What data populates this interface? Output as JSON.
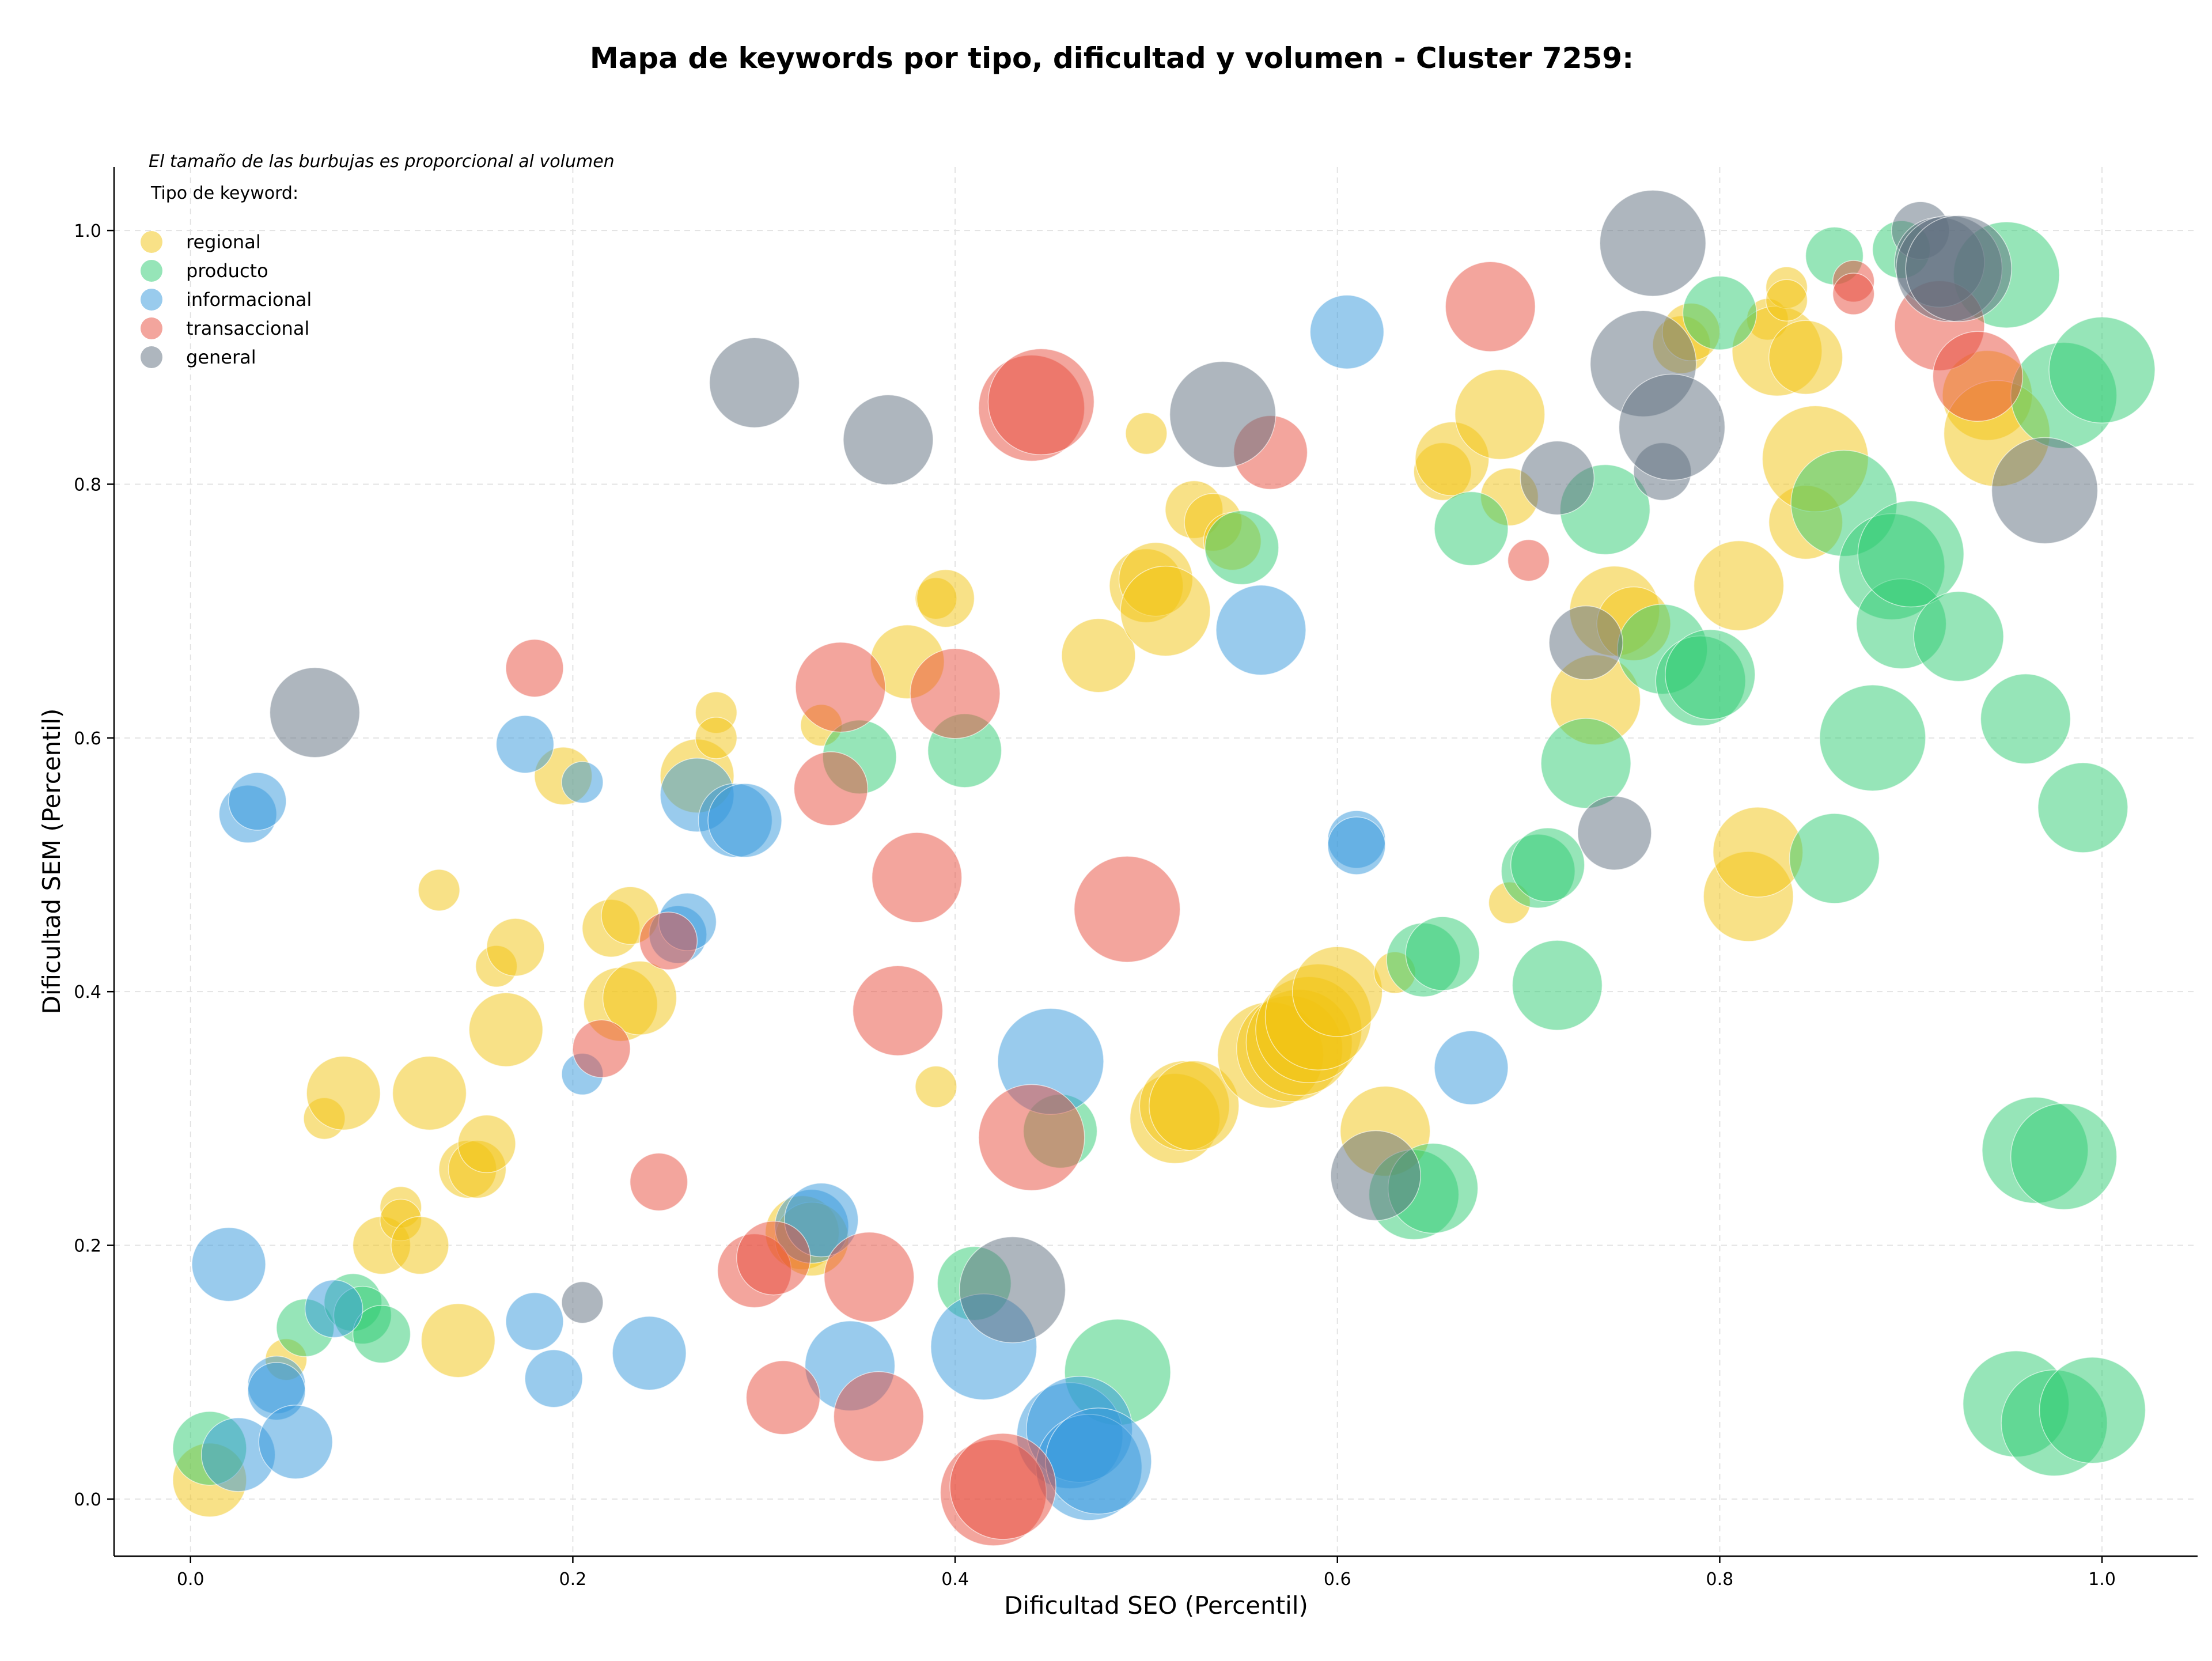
{
  "chart_data": {
    "type": "scatter",
    "title": "Mapa de keywords por tipo, dificultad y volumen - Cluster 7259:",
    "xlabel": "Dificultad SEO (Percentil)",
    "ylabel": "Dificultad SEM (Percentil)",
    "xlim": [
      -0.04,
      1.05
    ],
    "ylim": [
      -0.045,
      1.05
    ],
    "xticks": [
      0.0,
      0.2,
      0.4,
      0.6,
      0.8,
      1.0
    ],
    "yticks": [
      0.0,
      0.2,
      0.4,
      0.6,
      0.8,
      1.0
    ],
    "xtick_labels": [
      "0.0",
      "0.2",
      "0.4",
      "0.6",
      "0.8",
      "1.0"
    ],
    "ytick_labels": [
      "0.0",
      "0.2",
      "0.4",
      "0.6",
      "0.8",
      "1.0"
    ],
    "grid": true,
    "legend_position": "top-left",
    "legend_note": "El tamaño de las burbujas es proporcional al volumen",
    "legend_title": "Tipo de keyword:",
    "series": [
      {
        "name": "regional",
        "color": "#f1c40f",
        "points": [
          [
            0.01,
            0.015,
            3
          ],
          [
            0.05,
            0.11,
            1
          ],
          [
            0.07,
            0.3,
            1
          ],
          [
            0.08,
            0.32,
            3
          ],
          [
            0.1,
            0.2,
            2
          ],
          [
            0.11,
            0.23,
            1
          ],
          [
            0.11,
            0.22,
            1
          ],
          [
            0.12,
            0.2,
            2
          ],
          [
            0.125,
            0.32,
            3
          ],
          [
            0.13,
            0.48,
            1
          ],
          [
            0.14,
            0.125,
            3
          ],
          [
            0.145,
            0.26,
            2
          ],
          [
            0.15,
            0.26,
            2
          ],
          [
            0.155,
            0.28,
            2
          ],
          [
            0.16,
            0.42,
            1
          ],
          [
            0.165,
            0.37,
            3
          ],
          [
            0.17,
            0.435,
            2
          ],
          [
            0.195,
            0.57,
            2
          ],
          [
            0.22,
            0.45,
            2
          ],
          [
            0.225,
            0.39,
            3
          ],
          [
            0.23,
            0.46,
            2
          ],
          [
            0.235,
            0.395,
            3
          ],
          [
            0.265,
            0.57,
            3
          ],
          [
            0.275,
            0.62,
            1
          ],
          [
            0.275,
            0.6,
            1
          ],
          [
            0.33,
            0.61,
            1
          ],
          [
            0.32,
            0.21,
            3
          ],
          [
            0.325,
            0.205,
            3
          ],
          [
            0.375,
            0.66,
            3
          ],
          [
            0.39,
            0.71,
            1
          ],
          [
            0.39,
            0.325,
            1
          ],
          [
            0.395,
            0.71,
            2
          ],
          [
            0.475,
            0.665,
            3
          ],
          [
            0.5,
            0.84,
            1
          ],
          [
            0.5,
            0.72,
            3
          ],
          [
            0.505,
            0.725,
            3
          ],
          [
            0.51,
            0.7,
            4
          ],
          [
            0.515,
            0.3,
            4
          ],
          [
            0.52,
            0.31,
            4
          ],
          [
            0.525,
            0.31,
            4
          ],
          [
            0.525,
            0.78,
            2
          ],
          [
            0.535,
            0.77,
            2
          ],
          [
            0.545,
            0.755,
            2
          ],
          [
            0.565,
            0.35,
            5
          ],
          [
            0.575,
            0.355,
            5
          ],
          [
            0.58,
            0.36,
            5
          ],
          [
            0.585,
            0.37,
            5
          ],
          [
            0.59,
            0.38,
            5
          ],
          [
            0.6,
            0.4,
            4
          ],
          [
            0.625,
            0.29,
            4
          ],
          [
            0.63,
            0.415,
            1
          ],
          [
            0.655,
            0.81,
            2
          ],
          [
            0.66,
            0.82,
            3
          ],
          [
            0.685,
            0.855,
            4
          ],
          [
            0.69,
            0.79,
            2
          ],
          [
            0.69,
            0.47,
            1
          ],
          [
            0.735,
            0.63,
            4
          ],
          [
            0.745,
            0.7,
            4
          ],
          [
            0.755,
            0.69,
            3
          ],
          [
            0.78,
            0.91,
            2
          ],
          [
            0.785,
            0.92,
            2
          ],
          [
            0.81,
            0.72,
            4
          ],
          [
            0.815,
            0.475,
            4
          ],
          [
            0.82,
            0.51,
            4
          ],
          [
            0.825,
            0.93,
            1
          ],
          [
            0.83,
            0.905,
            4
          ],
          [
            0.835,
            0.955,
            1
          ],
          [
            0.835,
            0.945,
            1
          ],
          [
            0.845,
            0.9,
            3
          ],
          [
            0.845,
            0.77,
            3
          ],
          [
            0.85,
            0.82,
            5
          ],
          [
            0.94,
            0.87,
            4
          ],
          [
            0.945,
            0.84,
            5
          ]
        ]
      },
      {
        "name": "producto",
        "color": "#2ecc71",
        "points": [
          [
            0.01,
            0.04,
            3
          ],
          [
            0.06,
            0.135,
            2
          ],
          [
            0.085,
            0.155,
            2
          ],
          [
            0.09,
            0.145,
            2
          ],
          [
            0.1,
            0.13,
            2
          ],
          [
            0.35,
            0.585,
            3
          ],
          [
            0.405,
            0.59,
            3
          ],
          [
            0.41,
            0.17,
            3
          ],
          [
            0.455,
            0.29,
            3
          ],
          [
            0.485,
            0.1,
            5
          ],
          [
            0.55,
            0.75,
            3
          ],
          [
            0.64,
            0.24,
            4
          ],
          [
            0.645,
            0.425,
            3
          ],
          [
            0.65,
            0.245,
            4
          ],
          [
            0.655,
            0.43,
            3
          ],
          [
            0.67,
            0.765,
            3
          ],
          [
            0.705,
            0.495,
            3
          ],
          [
            0.71,
            0.5,
            3
          ],
          [
            0.715,
            0.405,
            4
          ],
          [
            0.73,
            0.58,
            4
          ],
          [
            0.74,
            0.78,
            4
          ],
          [
            0.77,
            0.67,
            4
          ],
          [
            0.79,
            0.645,
            4
          ],
          [
            0.795,
            0.65,
            4
          ],
          [
            0.8,
            0.935,
            3
          ],
          [
            0.86,
            0.98,
            2
          ],
          [
            0.86,
            0.505,
            4
          ],
          [
            0.865,
            0.785,
            5
          ],
          [
            0.88,
            0.6,
            5
          ],
          [
            0.89,
            0.735,
            5
          ],
          [
            0.895,
            0.69,
            4
          ],
          [
            0.895,
            0.985,
            2
          ],
          [
            0.9,
            0.745,
            5
          ],
          [
            0.925,
            0.68,
            4
          ],
          [
            0.95,
            0.965,
            5
          ],
          [
            0.955,
            0.075,
            5
          ],
          [
            0.96,
            0.615,
            4
          ],
          [
            0.965,
            0.275,
            5
          ],
          [
            0.975,
            0.06,
            5
          ],
          [
            0.98,
            0.87,
            5
          ],
          [
            0.98,
            0.27,
            5
          ],
          [
            0.99,
            0.545,
            4
          ],
          [
            0.995,
            0.07,
            5
          ],
          [
            1.0,
            0.89,
            5
          ]
        ]
      },
      {
        "name": "informacional",
        "color": "#3498db",
        "points": [
          [
            0.02,
            0.185,
            3
          ],
          [
            0.025,
            0.035,
            3
          ],
          [
            0.03,
            0.54,
            2
          ],
          [
            0.035,
            0.55,
            2
          ],
          [
            0.045,
            0.09,
            2
          ],
          [
            0.045,
            0.085,
            2
          ],
          [
            0.055,
            0.045,
            3
          ],
          [
            0.075,
            0.15,
            2
          ],
          [
            0.175,
            0.595,
            2
          ],
          [
            0.18,
            0.14,
            2
          ],
          [
            0.19,
            0.095,
            2
          ],
          [
            0.205,
            0.565,
            1
          ],
          [
            0.205,
            0.335,
            1
          ],
          [
            0.24,
            0.115,
            3
          ],
          [
            0.255,
            0.445,
            2
          ],
          [
            0.26,
            0.455,
            2
          ],
          [
            0.265,
            0.555,
            3
          ],
          [
            0.285,
            0.535,
            3
          ],
          [
            0.29,
            0.535,
            3
          ],
          [
            0.325,
            0.215,
            3
          ],
          [
            0.33,
            0.22,
            3
          ],
          [
            0.345,
            0.105,
            4
          ],
          [
            0.415,
            0.12,
            5
          ],
          [
            0.45,
            0.345,
            5
          ],
          [
            0.46,
            0.05,
            5
          ],
          [
            0.465,
            0.055,
            5
          ],
          [
            0.47,
            0.025,
            5
          ],
          [
            0.475,
            0.03,
            5
          ],
          [
            0.56,
            0.685,
            4
          ],
          [
            0.605,
            0.92,
            3
          ],
          [
            0.61,
            0.52,
            2
          ],
          [
            0.61,
            0.515,
            2
          ],
          [
            0.67,
            0.34,
            3
          ]
        ]
      },
      {
        "name": "transaccional",
        "color": "#e74c3c",
        "points": [
          [
            0.18,
            0.655,
            2
          ],
          [
            0.215,
            0.355,
            2
          ],
          [
            0.245,
            0.25,
            2
          ],
          [
            0.25,
            0.44,
            2
          ],
          [
            0.295,
            0.18,
            3
          ],
          [
            0.305,
            0.19,
            3
          ],
          [
            0.31,
            0.08,
            3
          ],
          [
            0.335,
            0.56,
            3
          ],
          [
            0.34,
            0.64,
            4
          ],
          [
            0.355,
            0.175,
            4
          ],
          [
            0.36,
            0.065,
            4
          ],
          [
            0.37,
            0.385,
            4
          ],
          [
            0.38,
            0.49,
            4
          ],
          [
            0.4,
            0.635,
            4
          ],
          [
            0.42,
            0.005,
            5
          ],
          [
            0.425,
            0.01,
            5
          ],
          [
            0.44,
            0.285,
            5
          ],
          [
            0.44,
            0.86,
            5
          ],
          [
            0.445,
            0.865,
            5
          ],
          [
            0.49,
            0.465,
            5
          ],
          [
            0.565,
            0.825,
            3
          ],
          [
            0.68,
            0.94,
            4
          ],
          [
            0.7,
            0.74,
            1
          ],
          [
            0.87,
            0.96,
            1
          ],
          [
            0.87,
            0.95,
            1
          ],
          [
            0.915,
            0.925,
            4
          ],
          [
            0.935,
            0.885,
            4
          ]
        ]
      },
      {
        "name": "general",
        "color": "#5d6d7e",
        "points": [
          [
            0.065,
            0.62,
            4
          ],
          [
            0.205,
            0.155,
            1
          ],
          [
            0.295,
            0.88,
            4
          ],
          [
            0.365,
            0.835,
            4
          ],
          [
            0.43,
            0.165,
            5
          ],
          [
            0.54,
            0.855,
            5
          ],
          [
            0.62,
            0.255,
            4
          ],
          [
            0.715,
            0.805,
            3
          ],
          [
            0.73,
            0.675,
            3
          ],
          [
            0.745,
            0.525,
            3
          ],
          [
            0.76,
            0.895,
            5
          ],
          [
            0.765,
            0.99,
            5
          ],
          [
            0.77,
            0.81,
            2
          ],
          [
            0.775,
            0.845,
            5
          ],
          [
            0.905,
            1.0,
            2
          ],
          [
            0.915,
            0.975,
            4
          ],
          [
            0.92,
            0.97,
            5
          ],
          [
            0.925,
            0.97,
            5
          ],
          [
            0.97,
            0.795,
            5
          ]
        ]
      }
    ]
  }
}
